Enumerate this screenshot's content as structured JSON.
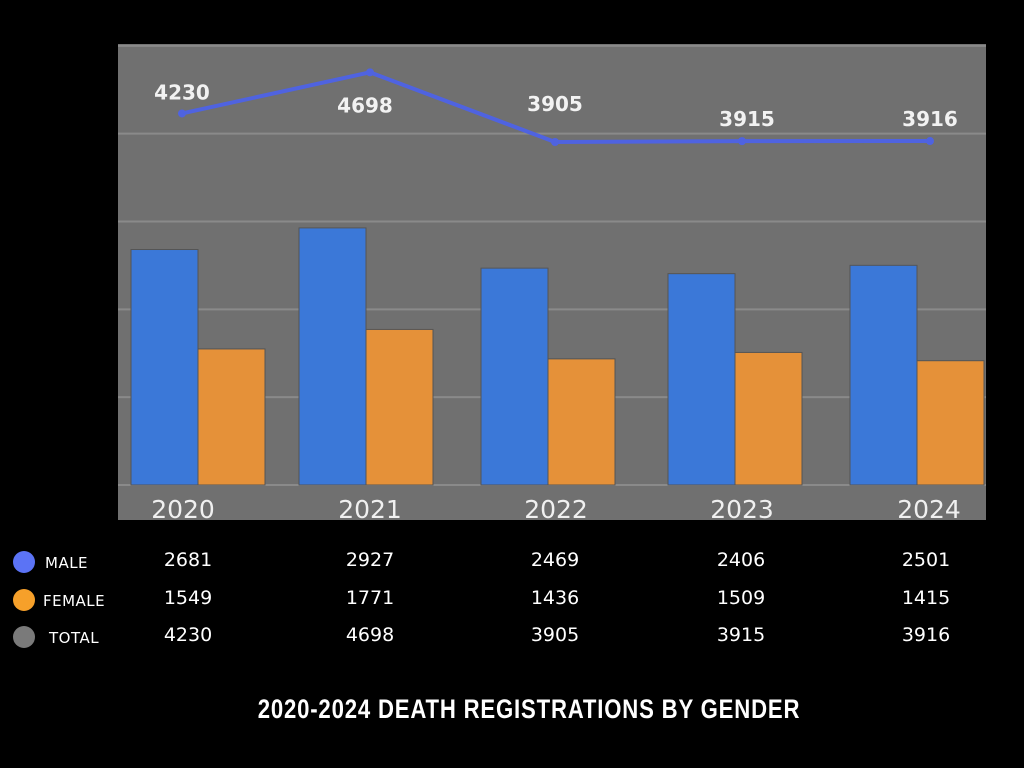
{
  "chart_data": {
    "type": "bar",
    "title": "2020-2024 DEATH REGISTRATIONS BY GENDER",
    "categories": [
      "2020",
      "2021",
      "2022",
      "2023",
      "2024"
    ],
    "series": [
      {
        "name": "MALE",
        "type": "bar",
        "color": "#3b78d8",
        "legend_color": "#5b73f5",
        "values": [
          2681,
          2927,
          2469,
          2406,
          2501
        ]
      },
      {
        "name": "FEMALE",
        "type": "bar",
        "color": "#e59139",
        "legend_color": "#f6a02a",
        "values": [
          1549,
          1771,
          1436,
          1509,
          1415
        ]
      },
      {
        "name": "TOTAL",
        "type": "line",
        "color": "#4f63e0",
        "legend_color": "#7a7a7a",
        "values": [
          4230,
          4698,
          3905,
          3915,
          3916
        ]
      }
    ],
    "ylim": [
      0,
      5000
    ],
    "gridlines": true,
    "legend_placement": "bottom-left table",
    "plot_background": "#707070"
  }
}
